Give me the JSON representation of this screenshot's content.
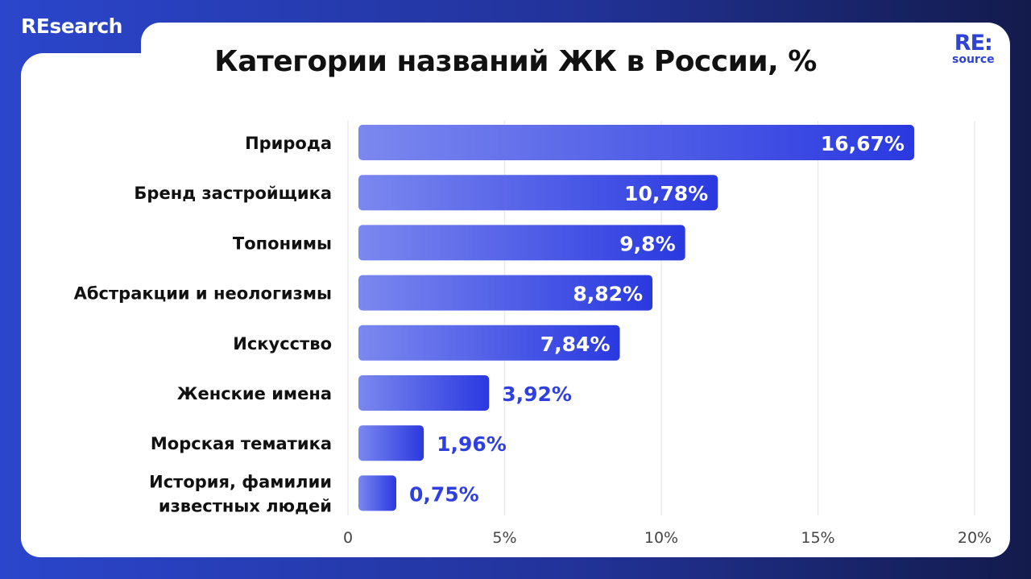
{
  "brand": "REsearch",
  "logo": {
    "main": "RE:",
    "sub": "source"
  },
  "colors": {
    "bar_start": "#7b88ef",
    "bar_end": "#2a39e0",
    "label_outside": "#2f3fe0",
    "background_left": "#2b46cc",
    "background_right": "#131b4c"
  },
  "chart_data": {
    "type": "bar",
    "orientation": "horizontal",
    "title": "Категории названий ЖК в России, %",
    "categories": [
      "Природа",
      "Бренд застройщика",
      "Топонимы",
      "Абстракции и неологизмы",
      "Искусство",
      "Женские имена",
      "Морская тематика",
      "История, фамилии известных людей"
    ],
    "values": [
      16.67,
      10.78,
      9.8,
      8.82,
      7.84,
      3.92,
      1.96,
      0.75
    ],
    "value_labels": [
      "16,67%",
      "10,78%",
      "9,8%",
      "8,82%",
      "7,84%",
      "3,92%",
      "1,96%",
      "0,75%"
    ],
    "xlim": [
      0,
      20
    ],
    "xticks": [
      0,
      5,
      10,
      15,
      20
    ],
    "xtick_labels": [
      "0",
      "5%",
      "10%",
      "15%",
      "20%"
    ],
    "grid": true
  }
}
